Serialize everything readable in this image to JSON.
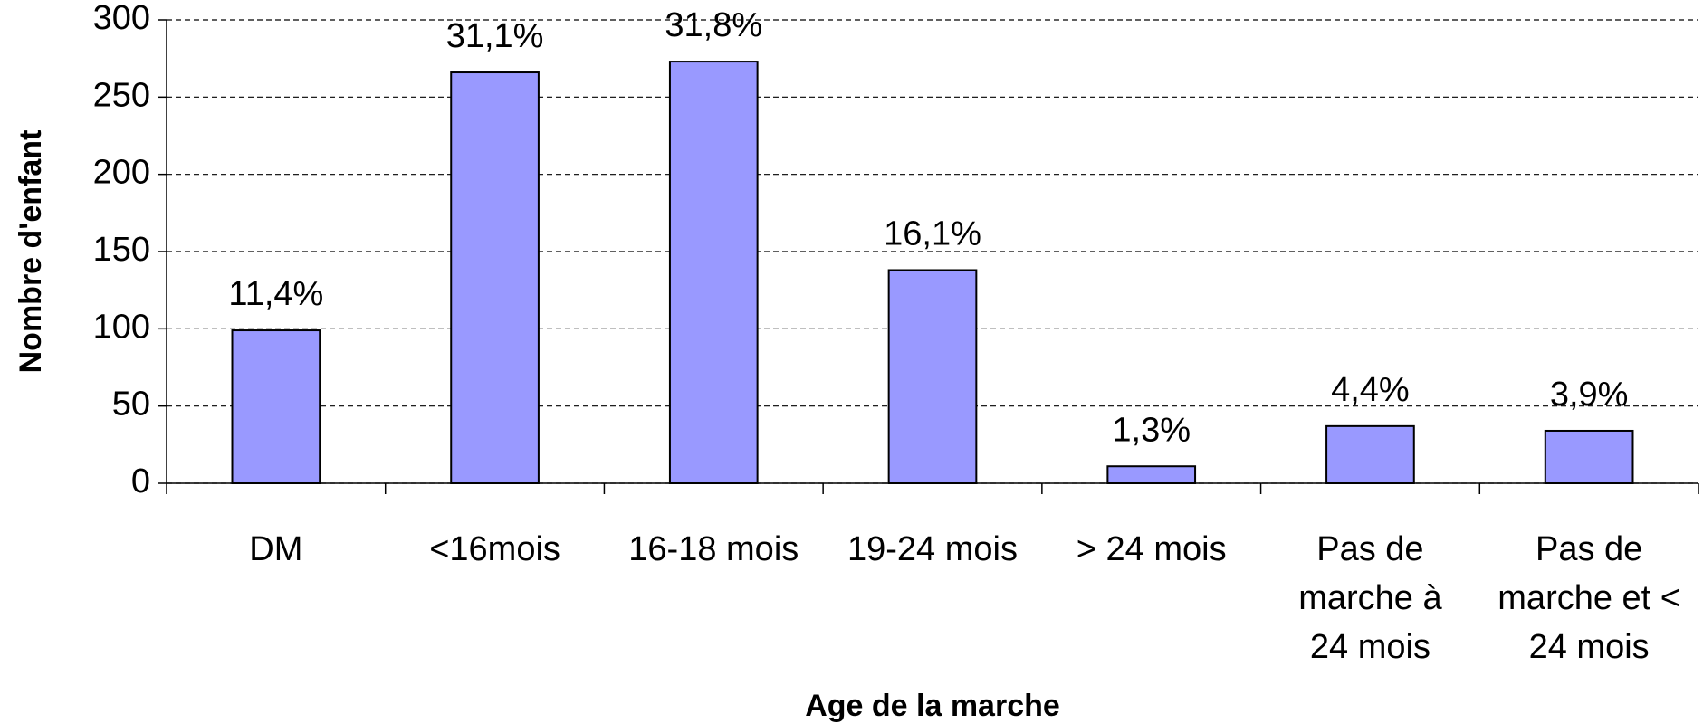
{
  "chart_data": {
    "type": "bar",
    "x_label": "Age de la marche",
    "y_label": "Nombre d'enfant",
    "categories": [
      "DM",
      "<16mois",
      "16-18 mois",
      "19-24 mois",
      "> 24 mois",
      "Pas de\nmarche à\n24 mois",
      "Pas de\nmarche et <\n24 mois"
    ],
    "values": [
      99,
      266,
      273,
      138,
      11,
      37,
      34
    ],
    "percentages": [
      {
        "value": 11.4,
        "label": "11,4%"
      },
      {
        "value": 31.1,
        "label": "31,1%"
      },
      {
        "value": 31.8,
        "label": "31,8%"
      },
      {
        "value": 16.1,
        "label": "16,1%"
      },
      {
        "value": 1.3,
        "label": "1,3%"
      },
      {
        "value": 4.4,
        "label": "4,4%"
      },
      {
        "value": 3.9,
        "label": "3,9%"
      }
    ],
    "color": "#9999ff",
    "ylim": [
      0,
      300
    ],
    "yticks": [
      0,
      50,
      100,
      150,
      200,
      250,
      300
    ],
    "grid": true
  }
}
